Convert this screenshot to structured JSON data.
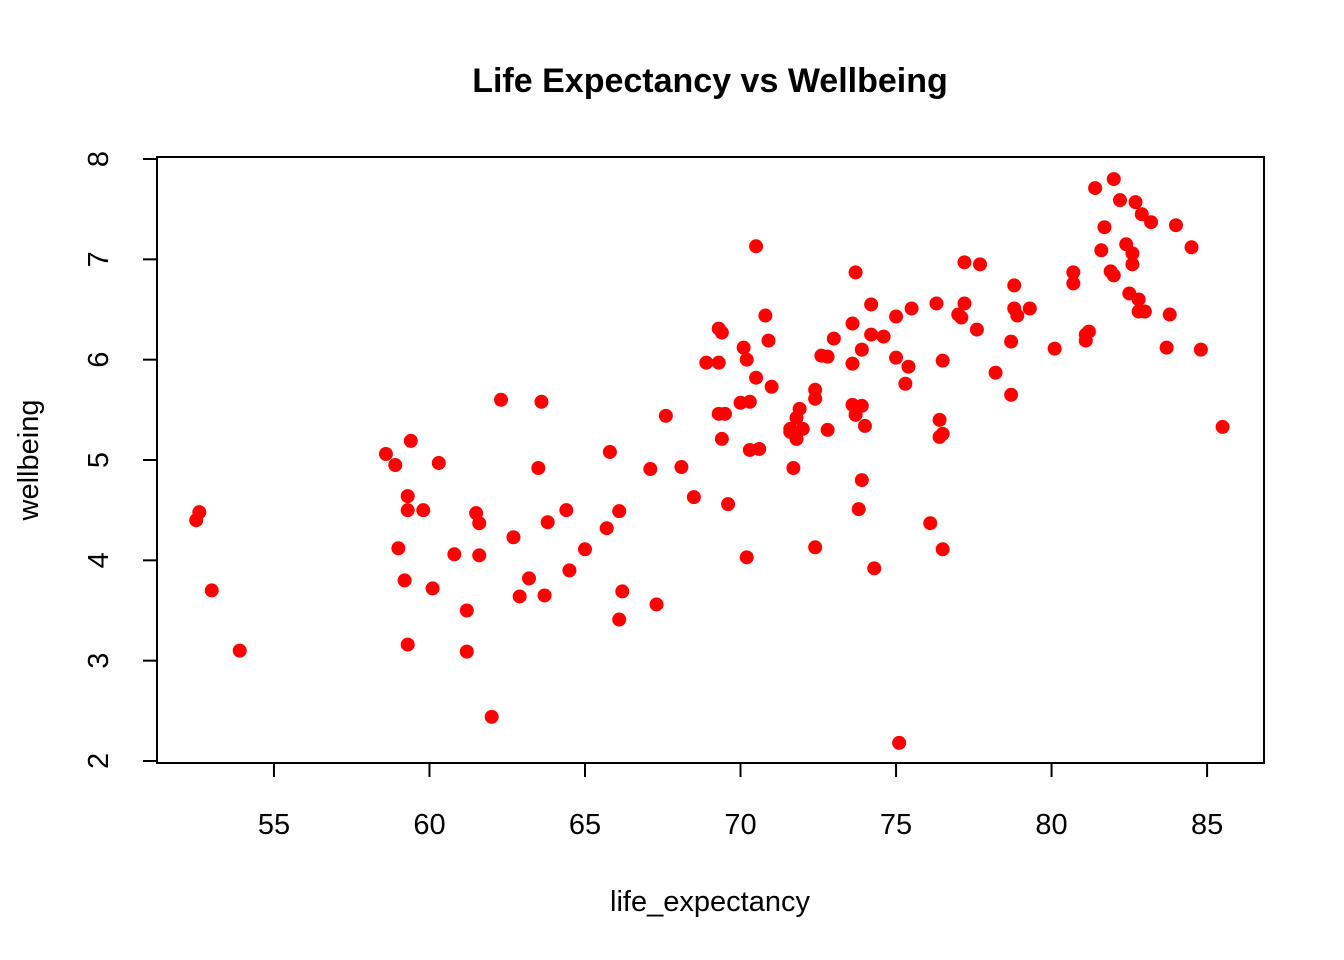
{
  "chart_data": {
    "type": "scatter",
    "title": "Life Expectancy vs Wellbeing",
    "xlabel": "life_expectancy",
    "ylabel": "wellbeing",
    "xlim": [
      51.24,
      86.83
    ],
    "ylim": [
      1.98,
      8.02
    ],
    "xticks": [
      55,
      60,
      65,
      70,
      75,
      80,
      85
    ],
    "yticks": [
      2,
      3,
      4,
      5,
      6,
      7,
      8
    ],
    "grid": false,
    "point_color": "#ff0000",
    "points": [
      [
        52.5,
        4.4
      ],
      [
        52.6,
        4.48
      ],
      [
        53.0,
        3.7
      ],
      [
        53.9,
        3.1
      ],
      [
        58.6,
        5.06
      ],
      [
        58.9,
        4.95
      ],
      [
        59.0,
        4.12
      ],
      [
        59.2,
        3.8
      ],
      [
        59.3,
        4.64
      ],
      [
        59.3,
        4.5
      ],
      [
        59.3,
        3.16
      ],
      [
        59.4,
        5.19
      ],
      [
        59.8,
        4.5
      ],
      [
        60.1,
        3.72
      ],
      [
        60.3,
        4.97
      ],
      [
        60.8,
        4.06
      ],
      [
        61.2,
        3.5
      ],
      [
        61.2,
        3.09
      ],
      [
        61.5,
        4.47
      ],
      [
        61.6,
        4.37
      ],
      [
        61.6,
        4.05
      ],
      [
        62.0,
        2.44
      ],
      [
        62.3,
        5.6
      ],
      [
        62.7,
        4.23
      ],
      [
        62.9,
        3.64
      ],
      [
        63.2,
        3.82
      ],
      [
        63.5,
        4.92
      ],
      [
        63.6,
        5.58
      ],
      [
        63.8,
        4.38
      ],
      [
        63.7,
        3.65
      ],
      [
        64.4,
        4.5
      ],
      [
        64.5,
        3.9
      ],
      [
        65.0,
        4.11
      ],
      [
        65.7,
        4.32
      ],
      [
        65.8,
        5.08
      ],
      [
        66.1,
        4.49
      ],
      [
        66.1,
        3.41
      ],
      [
        66.2,
        3.69
      ],
      [
        67.1,
        4.91
      ],
      [
        67.3,
        3.56
      ],
      [
        67.6,
        5.44
      ],
      [
        68.1,
        4.93
      ],
      [
        68.5,
        4.63
      ],
      [
        68.9,
        5.97
      ],
      [
        69.3,
        6.31
      ],
      [
        69.3,
        5.97
      ],
      [
        69.3,
        5.46
      ],
      [
        69.4,
        6.27
      ],
      [
        69.4,
        5.21
      ],
      [
        69.5,
        5.46
      ],
      [
        69.6,
        4.56
      ],
      [
        70.0,
        5.57
      ],
      [
        70.1,
        6.12
      ],
      [
        70.2,
        6.0
      ],
      [
        70.2,
        4.03
      ],
      [
        70.3,
        5.58
      ],
      [
        70.3,
        5.1
      ],
      [
        70.5,
        7.13
      ],
      [
        70.5,
        5.82
      ],
      [
        70.6,
        5.11
      ],
      [
        70.8,
        6.44
      ],
      [
        70.9,
        6.19
      ],
      [
        71.0,
        5.73
      ],
      [
        71.6,
        5.31
      ],
      [
        71.6,
        5.28
      ],
      [
        71.7,
        4.92
      ],
      [
        71.8,
        5.42
      ],
      [
        71.8,
        5.21
      ],
      [
        71.9,
        5.51
      ],
      [
        72.0,
        5.31
      ],
      [
        72.4,
        5.7
      ],
      [
        72.4,
        5.61
      ],
      [
        72.4,
        4.13
      ],
      [
        72.6,
        6.04
      ],
      [
        72.8,
        6.03
      ],
      [
        72.8,
        5.3
      ],
      [
        73.0,
        6.21
      ],
      [
        73.6,
        6.36
      ],
      [
        73.6,
        5.96
      ],
      [
        73.6,
        5.55
      ],
      [
        73.7,
        5.45
      ],
      [
        73.7,
        6.87
      ],
      [
        73.8,
        4.51
      ],
      [
        73.9,
        6.1
      ],
      [
        73.9,
        5.54
      ],
      [
        73.9,
        4.8
      ],
      [
        74.0,
        5.34
      ],
      [
        74.2,
        6.55
      ],
      [
        74.2,
        6.25
      ],
      [
        74.3,
        3.92
      ],
      [
        74.6,
        6.23
      ],
      [
        75.0,
        6.43
      ],
      [
        75.0,
        6.02
      ],
      [
        75.1,
        2.18
      ],
      [
        75.3,
        5.76
      ],
      [
        75.4,
        5.93
      ],
      [
        75.5,
        6.51
      ],
      [
        76.1,
        4.37
      ],
      [
        76.3,
        6.56
      ],
      [
        76.4,
        5.4
      ],
      [
        76.4,
        5.23
      ],
      [
        76.5,
        5.26
      ],
      [
        76.5,
        4.11
      ],
      [
        76.5,
        5.99
      ],
      [
        77.0,
        6.45
      ],
      [
        77.1,
        6.42
      ],
      [
        77.2,
        6.56
      ],
      [
        77.2,
        6.97
      ],
      [
        77.6,
        6.3
      ],
      [
        77.7,
        6.95
      ],
      [
        78.2,
        5.87
      ],
      [
        78.7,
        6.18
      ],
      [
        78.7,
        5.65
      ],
      [
        78.8,
        6.74
      ],
      [
        78.8,
        6.51
      ],
      [
        78.9,
        6.44
      ],
      [
        79.3,
        6.51
      ],
      [
        80.1,
        6.11
      ],
      [
        80.7,
        6.76
      ],
      [
        80.7,
        6.87
      ],
      [
        81.1,
        6.25
      ],
      [
        81.1,
        6.19
      ],
      [
        81.2,
        6.28
      ],
      [
        81.4,
        7.71
      ],
      [
        81.6,
        7.09
      ],
      [
        81.7,
        7.32
      ],
      [
        81.9,
        6.88
      ],
      [
        82.0,
        6.84
      ],
      [
        82.0,
        7.8
      ],
      [
        82.2,
        7.59
      ],
      [
        82.4,
        7.15
      ],
      [
        82.5,
        6.66
      ],
      [
        82.6,
        7.06
      ],
      [
        82.6,
        6.95
      ],
      [
        82.7,
        7.57
      ],
      [
        82.8,
        6.6
      ],
      [
        82.8,
        6.48
      ],
      [
        82.9,
        7.45
      ],
      [
        83.0,
        6.48
      ],
      [
        83.2,
        7.37
      ],
      [
        83.7,
        6.12
      ],
      [
        83.8,
        6.45
      ],
      [
        84.0,
        7.34
      ],
      [
        84.5,
        7.12
      ],
      [
        84.8,
        6.1
      ],
      [
        85.5,
        5.33
      ]
    ]
  }
}
